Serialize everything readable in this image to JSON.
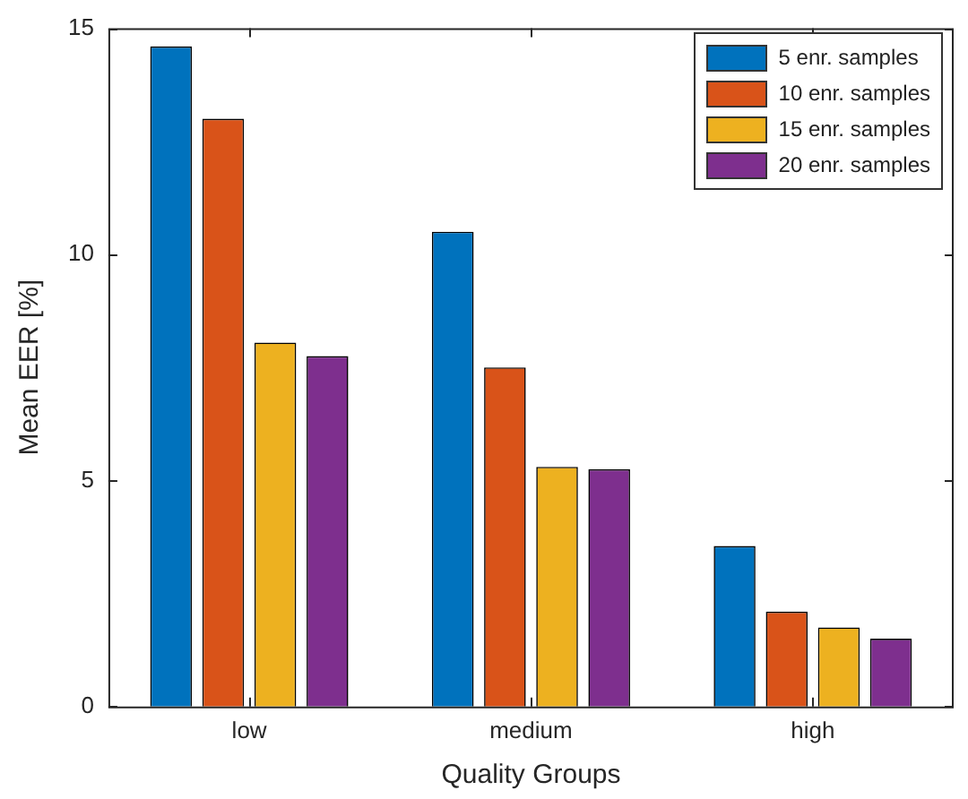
{
  "chart_data": {
    "type": "bar",
    "xlabel": "Quality Groups",
    "ylabel": "Mean EER [%]",
    "categories": [
      "low",
      "medium",
      "high"
    ],
    "series": [
      {
        "name": "5 enr. samples",
        "color": "#0072bd",
        "values": [
          14.6,
          10.5,
          3.55
        ]
      },
      {
        "name": "10 enr. samples",
        "color": "#d95319",
        "values": [
          13.0,
          7.5,
          2.1
        ]
      },
      {
        "name": "15 enr. samples",
        "color": "#edb120",
        "values": [
          8.05,
          5.3,
          1.75
        ]
      },
      {
        "name": "20 enr. samples",
        "color": "#7e2f8e",
        "values": [
          7.75,
          5.25,
          1.5
        ]
      }
    ],
    "ylim": [
      0,
      15
    ],
    "yticks": [
      0,
      5,
      10,
      15
    ],
    "grid": false,
    "legend": "top right"
  }
}
